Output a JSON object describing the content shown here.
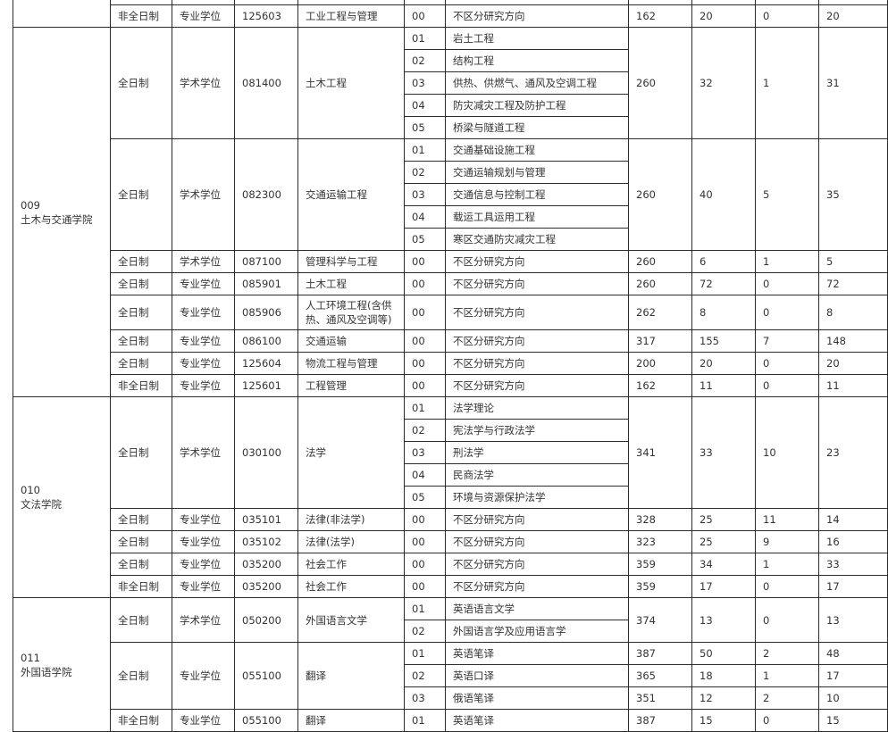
{
  "colleges": [
    {
      "code": "",
      "name": "",
      "programs": [
        {
          "mode": "",
          "degree": "",
          "code": "",
          "name": "",
          "directions": [
            {
              "code": "",
              "name": ""
            }
          ],
          "stats": {
            "score": "",
            "plan": "",
            "exempt": "",
            "unified": ""
          }
        },
        {
          "mode": "非全日制",
          "degree": "专业学位",
          "code": "125603",
          "name": "工业工程与管理",
          "directions": [
            {
              "code": "00",
              "name": "不区分研究方向"
            }
          ],
          "stats": {
            "score": "162",
            "plan": "20",
            "exempt": "0",
            "unified": "20"
          }
        }
      ]
    },
    {
      "code": "009",
      "name": "土木与交通学院",
      "programs": [
        {
          "mode": "全日制",
          "degree": "学术学位",
          "code": "081400",
          "name": "土木工程",
          "directions": [
            {
              "code": "01",
              "name": "岩土工程"
            },
            {
              "code": "02",
              "name": "结构工程"
            },
            {
              "code": "03",
              "name": "供热、供燃气、通风及空调工程"
            },
            {
              "code": "04",
              "name": "防灾减灾工程及防护工程"
            },
            {
              "code": "05",
              "name": "桥梁与隧道工程"
            }
          ],
          "stats": {
            "score": "260",
            "plan": "32",
            "exempt": "1",
            "unified": "31"
          }
        },
        {
          "mode": "全日制",
          "degree": "学术学位",
          "code": "082300",
          "name": "交通运输工程",
          "directions": [
            {
              "code": "01",
              "name": "交通基础设施工程"
            },
            {
              "code": "02",
              "name": "交通运输规划与管理"
            },
            {
              "code": "03",
              "name": "交通信息与控制工程"
            },
            {
              "code": "04",
              "name": "载运工具运用工程"
            },
            {
              "code": "05",
              "name": "寒区交通防灾减灾工程"
            }
          ],
          "stats": {
            "score": "260",
            "plan": "40",
            "exempt": "5",
            "unified": "35"
          }
        },
        {
          "mode": "全日制",
          "degree": "学术学位",
          "code": "087100",
          "name": "管理科学与工程",
          "directions": [
            {
              "code": "00",
              "name": "不区分研究方向"
            }
          ],
          "stats": {
            "score": "260",
            "plan": "6",
            "exempt": "1",
            "unified": "5"
          }
        },
        {
          "mode": "全日制",
          "degree": "专业学位",
          "code": "085901",
          "name": "土木工程",
          "directions": [
            {
              "code": "00",
              "name": "不区分研究方向"
            }
          ],
          "stats": {
            "score": "260",
            "plan": "72",
            "exempt": "0",
            "unified": "72"
          }
        },
        {
          "mode": "全日制",
          "degree": "专业学位",
          "code": "085906",
          "name": "人工环境工程(含供热、通风及空调等)",
          "directions": [
            {
              "code": "00",
              "name": "不区分研究方向"
            }
          ],
          "stats": {
            "score": "262",
            "plan": "8",
            "exempt": "0",
            "unified": "8"
          }
        },
        {
          "mode": "全日制",
          "degree": "专业学位",
          "code": "086100",
          "name": "交通运输",
          "directions": [
            {
              "code": "00",
              "name": "不区分研究方向"
            }
          ],
          "stats": {
            "score": "317",
            "plan": "155",
            "exempt": "7",
            "unified": "148"
          }
        },
        {
          "mode": "全日制",
          "degree": "专业学位",
          "code": "125604",
          "name": "物流工程与管理",
          "directions": [
            {
              "code": "00",
              "name": "不区分研究方向"
            }
          ],
          "stats": {
            "score": "200",
            "plan": "20",
            "exempt": "0",
            "unified": "20"
          }
        },
        {
          "mode": "非全日制",
          "degree": "专业学位",
          "code": "125601",
          "name": "工程管理",
          "directions": [
            {
              "code": "00",
              "name": "不区分研究方向"
            }
          ],
          "stats": {
            "score": "162",
            "plan": "11",
            "exempt": "0",
            "unified": "11"
          }
        }
      ]
    },
    {
      "code": "010",
      "name": "文法学院",
      "programs": [
        {
          "mode": "全日制",
          "degree": "学术学位",
          "code": "030100",
          "name": "法学",
          "directions": [
            {
              "code": "01",
              "name": "法学理论"
            },
            {
              "code": "02",
              "name": "宪法学与行政法学"
            },
            {
              "code": "03",
              "name": "刑法学"
            },
            {
              "code": "04",
              "name": "民商法学"
            },
            {
              "code": "05",
              "name": "环境与资源保护法学"
            }
          ],
          "stats": {
            "score": "341",
            "plan": "33",
            "exempt": "10",
            "unified": "23"
          }
        },
        {
          "mode": "全日制",
          "degree": "专业学位",
          "code": "035101",
          "name": "法律(非法学)",
          "directions": [
            {
              "code": "00",
              "name": "不区分研究方向"
            }
          ],
          "stats": {
            "score": "328",
            "plan": "25",
            "exempt": "11",
            "unified": "14"
          }
        },
        {
          "mode": "全日制",
          "degree": "专业学位",
          "code": "035102",
          "name": "法律(法学)",
          "directions": [
            {
              "code": "00",
              "name": "不区分研究方向"
            }
          ],
          "stats": {
            "score": "323",
            "plan": "25",
            "exempt": "9",
            "unified": "16"
          }
        },
        {
          "mode": "全日制",
          "degree": "专业学位",
          "code": "035200",
          "name": "社会工作",
          "directions": [
            {
              "code": "00",
              "name": "不区分研究方向"
            }
          ],
          "stats": {
            "score": "359",
            "plan": "34",
            "exempt": "1",
            "unified": "33"
          }
        },
        {
          "mode": "非全日制",
          "degree": "专业学位",
          "code": "035200",
          "name": "社会工作",
          "directions": [
            {
              "code": "00",
              "name": "不区分研究方向"
            }
          ],
          "stats": {
            "score": "359",
            "plan": "17",
            "exempt": "0",
            "unified": "17"
          }
        }
      ]
    },
    {
      "code": "011",
      "name": "外国语学院",
      "programs": [
        {
          "mode": "全日制",
          "degree": "学术学位",
          "code": "050200",
          "name": "外国语言文学",
          "directions": [
            {
              "code": "01",
              "name": "英语语言文学"
            },
            {
              "code": "02",
              "name": "外国语言学及应用语言学"
            }
          ],
          "stats": {
            "score": "374",
            "plan": "13",
            "exempt": "0",
            "unified": "13"
          }
        },
        {
          "mode": "全日制",
          "degree": "专业学位",
          "code": "055100",
          "name": "翻译",
          "directions": [
            {
              "code": "01",
              "name": "英语笔译",
              "stats": {
                "score": "387",
                "plan": "50",
                "exempt": "2",
                "unified": "48"
              }
            },
            {
              "code": "02",
              "name": "英语口译",
              "stats": {
                "score": "365",
                "plan": "18",
                "exempt": "1",
                "unified": "17"
              }
            },
            {
              "code": "03",
              "name": "俄语笔译",
              "stats": {
                "score": "351",
                "plan": "12",
                "exempt": "2",
                "unified": "10"
              }
            }
          ]
        },
        {
          "mode": "非全日制",
          "degree": "专业学位",
          "code": "055100",
          "name": "翻译",
          "directions": [
            {
              "code": "01",
              "name": "英语笔译",
              "stats": {
                "score": "387",
                "plan": "15",
                "exempt": "0",
                "unified": "15"
              }
            }
          ]
        }
      ]
    }
  ]
}
